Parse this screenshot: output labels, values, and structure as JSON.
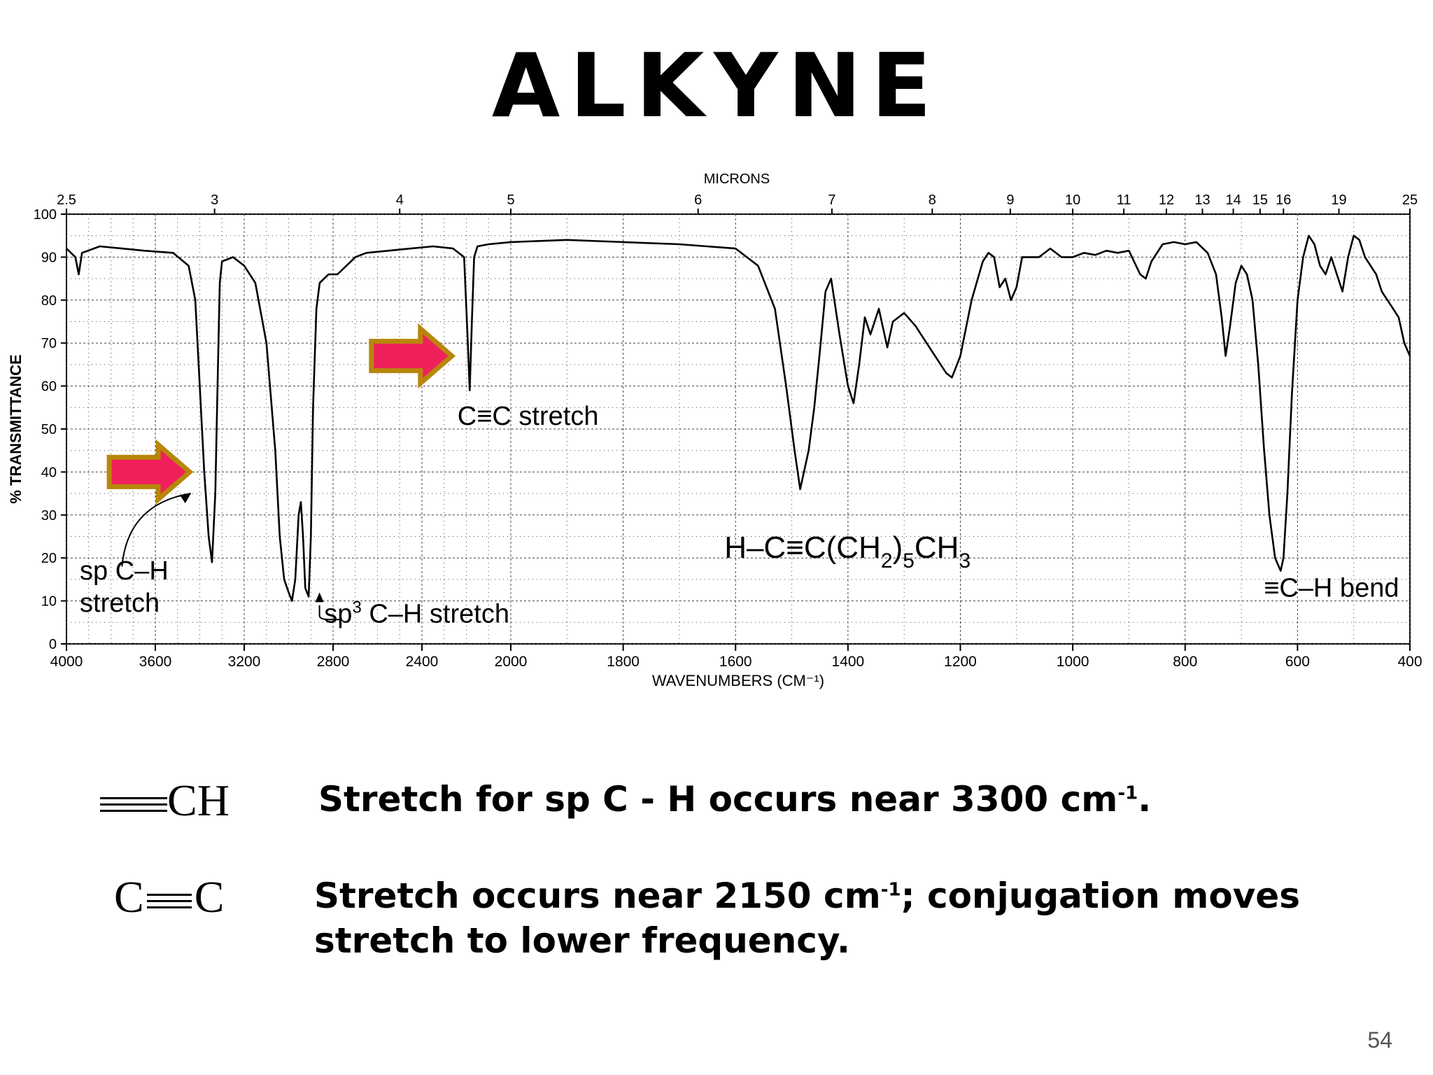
{
  "slide": {
    "title": "ALKYNE",
    "page_number": "54",
    "formula_rows": [
      {
        "symbol_text": "CH",
        "description_pre": "Stretch for sp C - H occurs near 3300 cm",
        "description_sup": "-1",
        "description_post": "."
      },
      {
        "symbol_left": "C",
        "symbol_right": "C",
        "description_pre": "Stretch occurs near 2150 cm",
        "description_sup": "-1",
        "description_post": "; conjugation moves stretch to lower frequency."
      }
    ]
  },
  "chart_data": {
    "type": "line",
    "title": "",
    "top_axis_label": "MICRONS",
    "xlabel": "WAVENUMBERS (CM⁻¹)",
    "ylabel": "% TRANSMITTANCE",
    "ylim": [
      0,
      100
    ],
    "yticks": [
      0,
      10,
      20,
      30,
      40,
      50,
      60,
      70,
      80,
      90,
      100
    ],
    "xticks": [
      {
        "wn": 4000,
        "label": "4000"
      },
      {
        "wn": 3600,
        "label": "3600"
      },
      {
        "wn": 3200,
        "label": "3200"
      },
      {
        "wn": 2800,
        "label": "2800"
      },
      {
        "wn": 2400,
        "label": "2400"
      },
      {
        "wn": 2000,
        "label": "2000"
      },
      {
        "wn": 1800,
        "label": "1800"
      },
      {
        "wn": 1600,
        "label": "1600"
      },
      {
        "wn": 1400,
        "label": "1400"
      },
      {
        "wn": 1200,
        "label": "1200"
      },
      {
        "wn": 1000,
        "label": "1000"
      },
      {
        "wn": 800,
        "label": "800"
      },
      {
        "wn": 600,
        "label": "600"
      },
      {
        "wn": 400,
        "label": "400"
      }
    ],
    "micron_ticks": [
      {
        "um": 2.5,
        "label": "2.5"
      },
      {
        "um": 3,
        "label": "3"
      },
      {
        "um": 4,
        "label": "4"
      },
      {
        "um": 5,
        "label": "5"
      },
      {
        "um": 6,
        "label": "6"
      },
      {
        "um": 7,
        "label": "7"
      },
      {
        "um": 8,
        "label": "8"
      },
      {
        "um": 9,
        "label": "9"
      },
      {
        "um": 10,
        "label": "10"
      },
      {
        "um": 11,
        "label": "11"
      },
      {
        "um": 12,
        "label": "12"
      },
      {
        "um": 13,
        "label": "13"
      },
      {
        "um": 14,
        "label": "14"
      },
      {
        "um": 15,
        "label": "15"
      },
      {
        "um": 16,
        "label": "16"
      },
      {
        "um": 19,
        "label": "19"
      },
      {
        "um": 25,
        "label": "25"
      }
    ],
    "grid": true,
    "series": [
      {
        "points": [
          [
            4000,
            92
          ],
          [
            3960,
            90
          ],
          [
            3945,
            86
          ],
          [
            3930,
            91
          ],
          [
            3850,
            92.5
          ],
          [
            3750,
            92
          ],
          [
            3650,
            91.5
          ],
          [
            3520,
            91
          ],
          [
            3450,
            88
          ],
          [
            3420,
            80
          ],
          [
            3400,
            60
          ],
          [
            3380,
            40
          ],
          [
            3360,
            25
          ],
          [
            3345,
            19
          ],
          [
            3330,
            35
          ],
          [
            3320,
            60
          ],
          [
            3310,
            84
          ],
          [
            3300,
            89
          ],
          [
            3250,
            90
          ],
          [
            3200,
            88
          ],
          [
            3150,
            84
          ],
          [
            3100,
            70
          ],
          [
            3060,
            45
          ],
          [
            3040,
            25
          ],
          [
            3020,
            15
          ],
          [
            3000,
            12
          ],
          [
            2985,
            10
          ],
          [
            2970,
            15
          ],
          [
            2955,
            30
          ],
          [
            2945,
            33
          ],
          [
            2935,
            25
          ],
          [
            2925,
            13
          ],
          [
            2910,
            11
          ],
          [
            2900,
            25
          ],
          [
            2890,
            55
          ],
          [
            2875,
            78
          ],
          [
            2860,
            84
          ],
          [
            2820,
            86
          ],
          [
            2780,
            86
          ],
          [
            2740,
            88
          ],
          [
            2700,
            90
          ],
          [
            2650,
            91
          ],
          [
            2550,
            91.5
          ],
          [
            2450,
            92
          ],
          [
            2350,
            92.5
          ],
          [
            2260,
            92
          ],
          [
            2210,
            90
          ],
          [
            2195,
            72
          ],
          [
            2185,
            59
          ],
          [
            2175,
            75
          ],
          [
            2165,
            90
          ],
          [
            2150,
            92.5
          ],
          [
            2100,
            93
          ],
          [
            2000,
            93.5
          ],
          [
            1900,
            94
          ],
          [
            1800,
            93.5
          ],
          [
            1700,
            93
          ],
          [
            1600,
            92
          ],
          [
            1560,
            88
          ],
          [
            1530,
            78
          ],
          [
            1510,
            60
          ],
          [
            1495,
            45
          ],
          [
            1485,
            36
          ],
          [
            1470,
            45
          ],
          [
            1460,
            55
          ],
          [
            1450,
            68
          ],
          [
            1440,
            82
          ],
          [
            1430,
            85
          ],
          [
            1415,
            72
          ],
          [
            1400,
            60
          ],
          [
            1390,
            56
          ],
          [
            1380,
            65
          ],
          [
            1370,
            76
          ],
          [
            1360,
            72
          ],
          [
            1345,
            78
          ],
          [
            1330,
            69
          ],
          [
            1320,
            75
          ],
          [
            1300,
            77
          ],
          [
            1280,
            74
          ],
          [
            1260,
            70
          ],
          [
            1240,
            66
          ],
          [
            1225,
            63
          ],
          [
            1215,
            62
          ],
          [
            1200,
            67
          ],
          [
            1180,
            80
          ],
          [
            1160,
            89
          ],
          [
            1150,
            91
          ],
          [
            1140,
            90
          ],
          [
            1130,
            83
          ],
          [
            1120,
            85
          ],
          [
            1110,
            80
          ],
          [
            1100,
            83
          ],
          [
            1090,
            90
          ],
          [
            1060,
            90
          ],
          [
            1040,
            92
          ],
          [
            1020,
            90
          ],
          [
            1000,
            90
          ],
          [
            980,
            91
          ],
          [
            960,
            90.5
          ],
          [
            940,
            91.5
          ],
          [
            920,
            91
          ],
          [
            900,
            91.5
          ],
          [
            880,
            86
          ],
          [
            870,
            85
          ],
          [
            860,
            89
          ],
          [
            840,
            93
          ],
          [
            820,
            93.5
          ],
          [
            800,
            93
          ],
          [
            780,
            93.5
          ],
          [
            760,
            91
          ],
          [
            745,
            86
          ],
          [
            735,
            76
          ],
          [
            728,
            67
          ],
          [
            720,
            74
          ],
          [
            710,
            84
          ],
          [
            700,
            88
          ],
          [
            690,
            86
          ],
          [
            680,
            80
          ],
          [
            670,
            65
          ],
          [
            660,
            46
          ],
          [
            650,
            30
          ],
          [
            640,
            20
          ],
          [
            630,
            17
          ],
          [
            625,
            20
          ],
          [
            618,
            35
          ],
          [
            610,
            58
          ],
          [
            600,
            80
          ],
          [
            590,
            90
          ],
          [
            580,
            95
          ],
          [
            570,
            93
          ],
          [
            560,
            88
          ],
          [
            550,
            86
          ],
          [
            540,
            90
          ],
          [
            530,
            86
          ],
          [
            520,
            82
          ],
          [
            510,
            90
          ],
          [
            500,
            95
          ],
          [
            490,
            94
          ],
          [
            480,
            90
          ],
          [
            470,
            88
          ],
          [
            460,
            86
          ],
          [
            450,
            82
          ],
          [
            440,
            80
          ],
          [
            430,
            78
          ],
          [
            420,
            76
          ],
          [
            410,
            70
          ],
          [
            400,
            67
          ]
        ]
      }
    ],
    "annotations": [
      {
        "kind": "text",
        "text": "C≡C stretch",
        "wn": 2240,
        "t": 51
      },
      {
        "kind": "text",
        "text": "sp C–H",
        "wn": 3940,
        "t": 15
      },
      {
        "kind": "text",
        "text": "stretch",
        "wn": 3940,
        "t": 7.5
      },
      {
        "kind": "text",
        "text": "≡C–H bend",
        "wn": 660,
        "t": 11
      },
      {
        "kind": "sp3",
        "pre": "sp",
        "sup": "3",
        "post": " C–H stretch",
        "wn": 2840,
        "t": 5
      },
      {
        "kind": "formula",
        "p1": "H–C≡C(CH",
        "s1": "2",
        "p2": ")",
        "s2": "5",
        "p3": "CH",
        "s3": "3",
        "wn": 1620,
        "t": 20
      }
    ],
    "highlight_arrows": [
      {
        "target_wn": 3420,
        "t": 40,
        "color": "#f0205a"
      },
      {
        "target_wn": 2240,
        "t": 67,
        "color": "#f0205a"
      }
    ]
  }
}
